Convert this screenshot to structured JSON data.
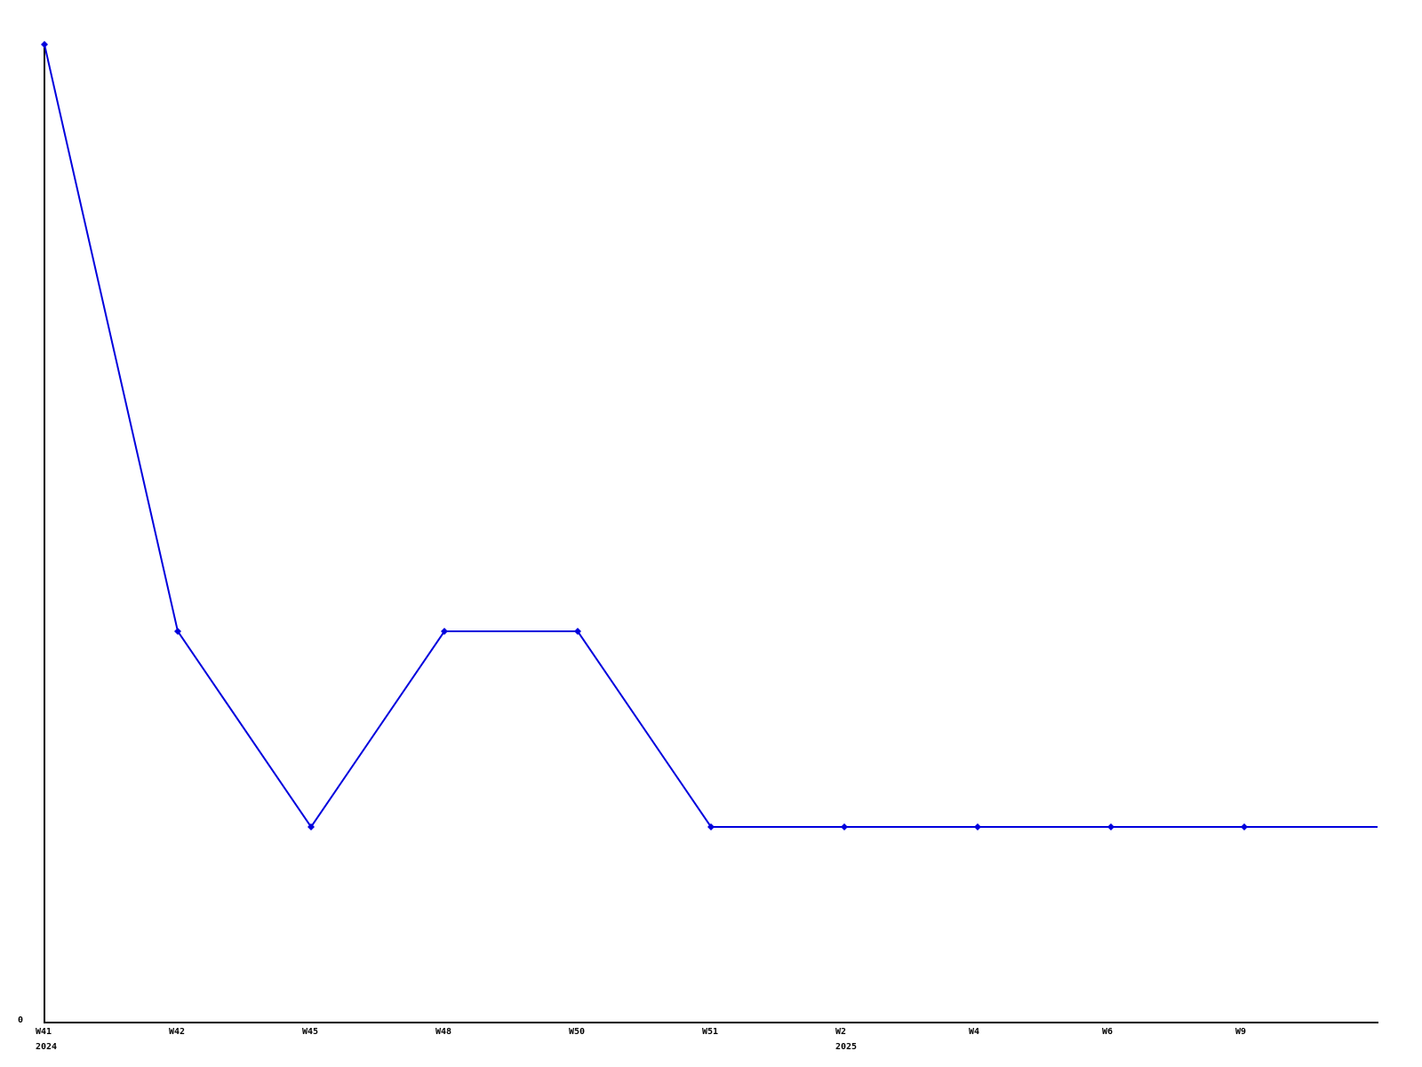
{
  "chart_data": {
    "type": "line",
    "title": "",
    "xlabel": "",
    "ylabel": "",
    "ylim": [
      0,
      5
    ],
    "grid": false,
    "legend": "none",
    "marker_shape": "diamond",
    "x_axis_note": "weekly ticks, evenly spaced; final segment extends to right edge without marker or label",
    "y_axis": {
      "zero_label": "0"
    },
    "points": [
      {
        "x_label": "W41",
        "year_label": "2024",
        "value": 5,
        "marker": true
      },
      {
        "x_label": "W42",
        "year_label": "",
        "value": 2,
        "marker": true
      },
      {
        "x_label": "W45",
        "year_label": "",
        "value": 1,
        "marker": true
      },
      {
        "x_label": "W48",
        "year_label": "",
        "value": 2,
        "marker": true
      },
      {
        "x_label": "W50",
        "year_label": "",
        "value": 2,
        "marker": true
      },
      {
        "x_label": "W51",
        "year_label": "",
        "value": 1,
        "marker": true
      },
      {
        "x_label": "W2",
        "year_label": "2025",
        "value": 1,
        "marker": true
      },
      {
        "x_label": "W4",
        "year_label": "",
        "value": 1,
        "marker": true
      },
      {
        "x_label": "W6",
        "year_label": "",
        "value": 1,
        "marker": true
      },
      {
        "x_label": "W9",
        "year_label": "",
        "value": 1,
        "marker": true
      },
      {
        "x_label": "",
        "year_label": "",
        "value": 1,
        "marker": false
      }
    ]
  },
  "colors": {
    "line": "#0000dd",
    "axis": "#000000",
    "label_text": "#000000",
    "background": "#ffffff"
  }
}
